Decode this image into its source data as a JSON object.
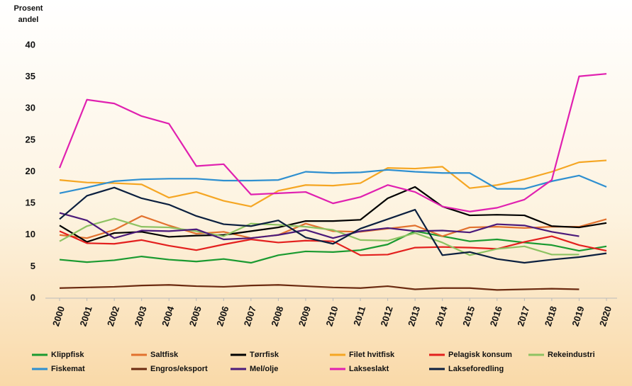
{
  "chart_data": {
    "type": "line",
    "ylabel": [
      "Prosent",
      "andel"
    ],
    "x": [
      2000,
      2001,
      2002,
      2003,
      2004,
      2005,
      2006,
      2007,
      2008,
      2009,
      2010,
      2011,
      2012,
      2013,
      2014,
      2015,
      2016,
      2017,
      2018,
      2019,
      2020
    ],
    "xlim": [
      2000,
      2020
    ],
    "ylim": [
      0,
      40
    ],
    "yticks": [
      0,
      5,
      10,
      15,
      20,
      25,
      30,
      35,
      40
    ],
    "grid": false,
    "legend": "bottom",
    "series": [
      {
        "name": "Klippfisk",
        "color": "#1a9a30",
        "values": [
          6.1,
          5.7,
          6.0,
          6.6,
          6.1,
          5.8,
          6.2,
          5.6,
          6.8,
          7.4,
          7.3,
          7.6,
          8.5,
          10.6,
          9.8,
          9.0,
          9.3,
          8.8,
          8.4,
          7.5,
          8.2
        ]
      },
      {
        "name": "Saltfisk",
        "color": "#e2712e",
        "values": [
          10.0,
          9.5,
          10.8,
          13.0,
          11.5,
          10.2,
          10.5,
          9.5,
          10.0,
          11.8,
          10.6,
          10.5,
          11.0,
          11.5,
          9.8,
          11.2,
          11.3,
          11.1,
          11.3,
          11.3,
          12.5
        ]
      },
      {
        "name": "Tørrfisk",
        "color": "#000000",
        "values": [
          11.5,
          8.9,
          10.3,
          10.5,
          9.7,
          9.9,
          10.0,
          10.6,
          11.2,
          12.2,
          12.2,
          12.4,
          15.8,
          17.6,
          14.5,
          13.1,
          13.2,
          13.1,
          11.4,
          11.2,
          11.9
        ]
      },
      {
        "name": "Filet hvitfisk",
        "color": "#f5a623",
        "values": [
          18.7,
          18.3,
          18.2,
          18.0,
          15.9,
          16.8,
          15.4,
          14.5,
          17.0,
          17.9,
          17.8,
          18.2,
          20.6,
          20.5,
          20.8,
          17.4,
          17.9,
          18.8,
          20.0,
          21.5,
          21.8
        ]
      },
      {
        "name": "Pelagisk konsum",
        "color": "#e3201e",
        "values": [
          10.6,
          8.7,
          8.6,
          9.2,
          8.3,
          7.6,
          8.5,
          9.3,
          8.8,
          9.1,
          9.0,
          6.8,
          6.9,
          8.0,
          8.1,
          8.0,
          7.8,
          8.9,
          9.8,
          8.4,
          7.5
        ]
      },
      {
        "name": "Rekeindustri",
        "color": "#8dc262",
        "values": [
          9.0,
          11.4,
          12.6,
          11.3,
          11.2,
          10.6,
          9.8,
          11.8,
          11.6,
          11.3,
          10.8,
          9.2,
          9.1,
          10.3,
          8.8,
          6.8,
          7.8,
          8.2,
          6.9,
          6.9,
          null
        ]
      },
      {
        "name": "Fiskemat",
        "color": "#2e8fd0",
        "values": [
          16.6,
          17.5,
          18.5,
          18.8,
          18.9,
          18.9,
          18.6,
          18.6,
          18.7,
          20.0,
          19.8,
          19.9,
          20.3,
          20.0,
          19.8,
          19.8,
          17.3,
          17.3,
          18.5,
          19.4,
          17.6
        ]
      },
      {
        "name": "Engros/eksport",
        "color": "#6b2a10",
        "values": [
          1.6,
          1.7,
          1.8,
          2.0,
          2.1,
          1.9,
          1.8,
          2.0,
          2.1,
          1.9,
          1.7,
          1.6,
          1.9,
          1.4,
          1.6,
          1.6,
          1.3,
          1.4,
          1.5,
          1.4,
          null
        ]
      },
      {
        "name": "Mel/olje",
        "color": "#4b1a7a",
        "values": [
          13.5,
          12.3,
          9.5,
          10.7,
          10.6,
          10.9,
          9.3,
          9.5,
          10.0,
          10.8,
          9.5,
          10.6,
          11.1,
          10.6,
          10.7,
          10.4,
          11.7,
          11.5,
          10.5,
          9.8,
          null
        ]
      },
      {
        "name": "Lakseslakt",
        "color": "#e020b0",
        "values": [
          20.6,
          31.4,
          30.8,
          28.8,
          27.6,
          20.9,
          21.2,
          16.4,
          16.6,
          16.8,
          15.0,
          16.0,
          17.9,
          16.8,
          14.5,
          13.7,
          14.3,
          15.6,
          18.7,
          35.1,
          35.5
        ]
      },
      {
        "name": "Lakseforedling",
        "color": "#0b1f3f",
        "values": [
          12.5,
          16.2,
          17.5,
          15.8,
          14.8,
          13.0,
          11.7,
          11.4,
          12.3,
          9.6,
          8.6,
          11.0,
          12.5,
          14.0,
          6.8,
          7.3,
          6.2,
          5.6,
          6.1,
          6.5,
          7.1
        ]
      }
    ]
  }
}
